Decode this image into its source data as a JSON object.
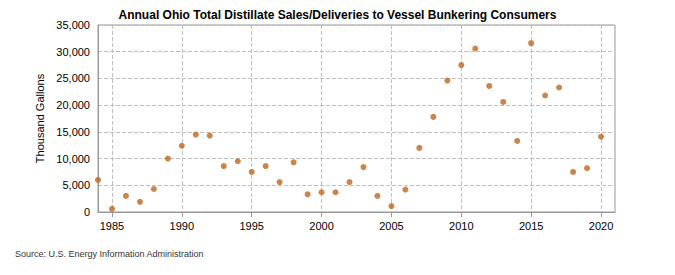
{
  "chart_data": {
    "type": "scatter",
    "title": "Annual Ohio Total Distillate Sales/Deliveries to Vessel Bunkering Consumers",
    "y_label": "Thousand Gallons",
    "source": "Source: U.S. Energy Information Administration",
    "x": [
      1984,
      1985,
      1986,
      1987,
      1988,
      1989,
      1990,
      1991,
      1992,
      1993,
      1994,
      1995,
      1996,
      1997,
      1998,
      1999,
      2000,
      2001,
      2002,
      2003,
      2004,
      2005,
      2006,
      2007,
      2008,
      2009,
      2010,
      2011,
      2012,
      2013,
      2014,
      2015,
      2016,
      2017,
      2018,
      2019,
      2020
    ],
    "values": [
      6000,
      600,
      3000,
      1900,
      4300,
      10000,
      12400,
      14500,
      14300,
      8600,
      9500,
      7500,
      8600,
      5600,
      9300,
      3300,
      3700,
      3700,
      5600,
      8400,
      3000,
      1100,
      4200,
      12000,
      17800,
      24600,
      27500,
      30600,
      23600,
      20600,
      13300,
      31600,
      21800,
      23300,
      7500,
      8200,
      14100
    ],
    "color": "#c0651a",
    "marker": "circle",
    "xlim": [
      1984,
      2021
    ],
    "xticks": [
      1985,
      1990,
      1995,
      2000,
      2005,
      2010,
      2015,
      2020
    ],
    "ylim": [
      0,
      35000
    ],
    "yticks": [
      0,
      {
        "value": 5000,
        "label": "5,000"
      },
      {
        "value": 10000,
        "label": "10,000"
      },
      {
        "value": 15000,
        "label": "15,000"
      },
      {
        "value": 20000,
        "label": "20,000"
      },
      {
        "value": 25000,
        "label": "25,000"
      },
      {
        "value": 30000,
        "label": "30,000"
      },
      {
        "value": 35000,
        "label": "35,000"
      }
    ],
    "grid": true
  }
}
